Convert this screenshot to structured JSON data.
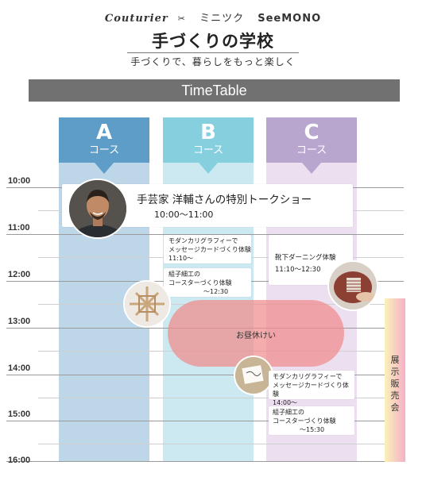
{
  "header": {
    "brands": [
      "Couturier",
      "ミニツク",
      "SeeMONO"
    ],
    "title": "手づくりの学校",
    "subtitle": "手づくりで、暮らしをもっと楽しく",
    "timetable_label": "TimeTable"
  },
  "columns": [
    {
      "letter": "A",
      "course": "コース",
      "color": "#5d9dc8"
    },
    {
      "letter": "B",
      "course": "コース",
      "color": "#86cfdf"
    },
    {
      "letter": "C",
      "course": "コース",
      "color": "#b8a6cf"
    }
  ],
  "times": [
    "10:00",
    "11:00",
    "12:00",
    "13:00",
    "14:00",
    "15:00",
    "16:00"
  ],
  "events": {
    "talk_show": {
      "title": "手芸家 洋輔さんの特別トークショー",
      "time": "10:00〜11:00"
    },
    "b_calligraphy": {
      "line1": "モダンカリグラフィーで",
      "line2": "メッセージカードづくり体験",
      "time": "11:10〜"
    },
    "b_kumiko": {
      "line1": "組子細工の",
      "line2": "コースターづくり体験",
      "time": "〜12:30"
    },
    "c_darning": {
      "title": "靴下ダーニング体験",
      "time": "11:10〜12:30"
    },
    "lunch": {
      "label": "お昼休けい"
    },
    "c_calligraphy": {
      "line1": "モダンカリグラフィーで",
      "line2": "メッセージカードづくり体験",
      "time": "14:00〜"
    },
    "c_kumiko": {
      "line1": "組子細工の",
      "line2": "コースターづくり体験",
      "time": "〜15:30"
    },
    "exhibit": {
      "label": "展示販売会"
    }
  },
  "colors": {
    "a_bg": "#bdd6e8",
    "b_bg": "#cce9f1",
    "c_bg": "#ecdff0",
    "lunch": "#f08c8c",
    "bar": "#717171"
  }
}
